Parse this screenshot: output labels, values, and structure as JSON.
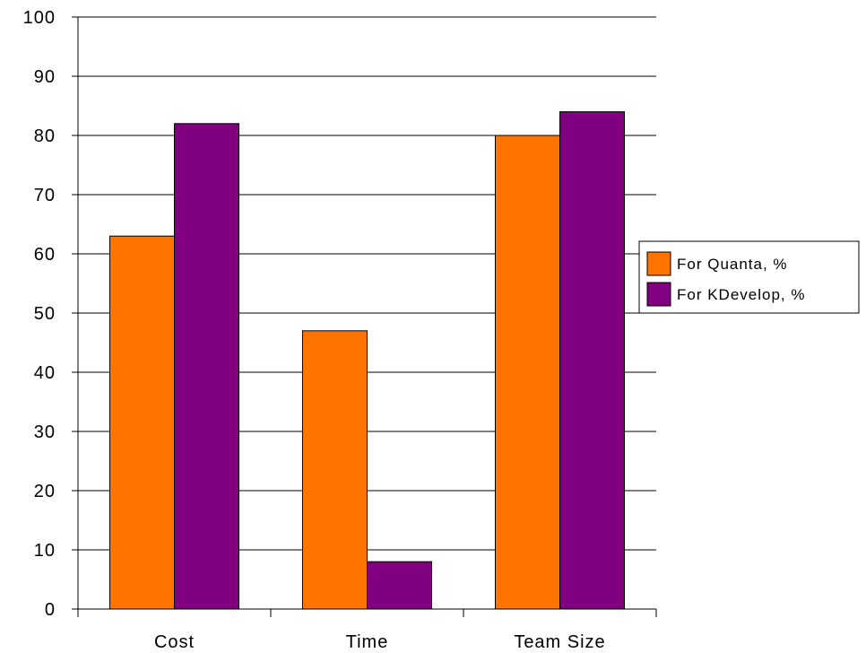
{
  "chart_data": {
    "type": "bar",
    "title": "",
    "xlabel": "",
    "ylabel": "",
    "categories": [
      "Cost",
      "Time",
      "Team Size"
    ],
    "series": [
      {
        "name": "For Quanta, %",
        "color": "#ff7300",
        "values": [
          63,
          47,
          80
        ]
      },
      {
        "name": "For KDevelop, %",
        "color": "#800080",
        "values": [
          82,
          8,
          84
        ]
      }
    ],
    "ylim": [
      0,
      100
    ],
    "yticks": [
      "0",
      "10",
      "20",
      "30",
      "40",
      "50",
      "60",
      "70",
      "80",
      "90",
      "100"
    ],
    "grid": true,
    "legend": "right"
  }
}
